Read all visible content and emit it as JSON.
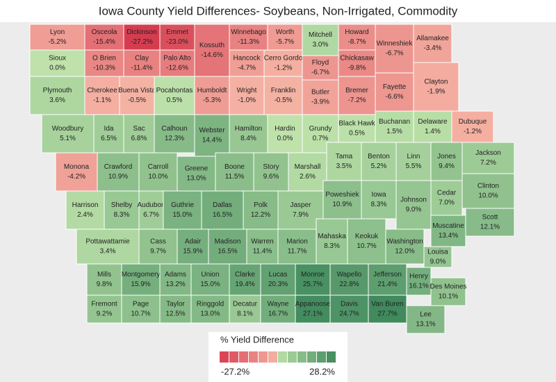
{
  "title": "Iowa County Yield Differences- Soybeans, Non-Irrigated, Commodity",
  "counties": [
    {
      "name": "Lyon",
      "value": -5.2,
      "value_label": "-5.2%"
    },
    {
      "name": "Osceola",
      "value": -15.4,
      "value_label": "-15.4%"
    },
    {
      "name": "Dickinson",
      "value": -27.2,
      "value_label": "-27.2%"
    },
    {
      "name": "Emmet",
      "value": -23.0,
      "value_label": "-23.0%"
    },
    {
      "name": "Kossuth",
      "value": -14.6,
      "value_label": "-14.6%"
    },
    {
      "name": "Winnebago",
      "value": -11.3,
      "value_label": "-11.3%"
    },
    {
      "name": "Worth",
      "value": -5.7,
      "value_label": "-5.7%"
    },
    {
      "name": "Mitchell",
      "value": 3.0,
      "value_label": "3.0%"
    },
    {
      "name": "Howard",
      "value": -8.7,
      "value_label": "-8.7%"
    },
    {
      "name": "Winneshiek",
      "value": -6.7,
      "value_label": "-6.7%"
    },
    {
      "name": "Allamakee",
      "value": -3.4,
      "value_label": "-3.4%"
    },
    {
      "name": "Sioux",
      "value": 0.0,
      "value_label": "0.0%"
    },
    {
      "name": "O Brien",
      "value": -10.3,
      "value_label": "-10.3%"
    },
    {
      "name": "Clay",
      "value": -11.4,
      "value_label": "-11.4%"
    },
    {
      "name": "Palo Alto",
      "value": -12.6,
      "value_label": "-12.6%"
    },
    {
      "name": "Hancock",
      "value": -4.7,
      "value_label": "-4.7%"
    },
    {
      "name": "Cerro Gordo",
      "value": -1.2,
      "value_label": "-1.2%"
    },
    {
      "name": "Floyd",
      "value": -6.7,
      "value_label": "-6.7%"
    },
    {
      "name": "Chickasaw",
      "value": -9.8,
      "value_label": "-9.8%"
    },
    {
      "name": "Fayette",
      "value": -6.6,
      "value_label": "-6.6%"
    },
    {
      "name": "Clayton",
      "value": -1.9,
      "value_label": "-1.9%"
    },
    {
      "name": "Plymouth",
      "value": 3.6,
      "value_label": "3.6%"
    },
    {
      "name": "Cherokee",
      "value": -1.1,
      "value_label": "-1.1%"
    },
    {
      "name": "Buena Vista",
      "value": -0.5,
      "value_label": "-0.5%"
    },
    {
      "name": "Pocahontas",
      "value": 0.5,
      "value_label": "0.5%"
    },
    {
      "name": "Humboldt",
      "value": -5.3,
      "value_label": "-5.3%"
    },
    {
      "name": "Wright",
      "value": -1.0,
      "value_label": "-1.0%"
    },
    {
      "name": "Franklin",
      "value": -0.5,
      "value_label": "-0.5%"
    },
    {
      "name": "Butler",
      "value": -3.9,
      "value_label": "-3.9%"
    },
    {
      "name": "Bremer",
      "value": -7.2,
      "value_label": "-7.2%"
    },
    {
      "name": "Woodbury",
      "value": 5.1,
      "value_label": "5.1%"
    },
    {
      "name": "Ida",
      "value": 6.5,
      "value_label": "6.5%"
    },
    {
      "name": "Sac",
      "value": 6.8,
      "value_label": "6.8%"
    },
    {
      "name": "Calhoun",
      "value": 12.3,
      "value_label": "12.3%"
    },
    {
      "name": "Webster",
      "value": 14.4,
      "value_label": "14.4%"
    },
    {
      "name": "Hamilton",
      "value": 8.4,
      "value_label": "8.4%"
    },
    {
      "name": "Hardin",
      "value": 0.0,
      "value_label": "0.0%"
    },
    {
      "name": "Grundy",
      "value": 0.7,
      "value_label": "0.7%"
    },
    {
      "name": "Black Hawk",
      "value": 0.5,
      "value_label": "0.5%"
    },
    {
      "name": "Buchanan",
      "value": 1.5,
      "value_label": "1.5%"
    },
    {
      "name": "Delaware",
      "value": 1.4,
      "value_label": "1.4%"
    },
    {
      "name": "Dubuque",
      "value": -1.2,
      "value_label": "-1.2%"
    },
    {
      "name": "Monona",
      "value": -4.2,
      "value_label": "-4.2%"
    },
    {
      "name": "Crawford",
      "value": 10.9,
      "value_label": "10.9%"
    },
    {
      "name": "Carroll",
      "value": 10.0,
      "value_label": "10.0%"
    },
    {
      "name": "Greene",
      "value": 13.0,
      "value_label": "13.0%"
    },
    {
      "name": "Boone",
      "value": 11.5,
      "value_label": "11.5%"
    },
    {
      "name": "Story",
      "value": 9.6,
      "value_label": "9.6%"
    },
    {
      "name": "Marshall",
      "value": 2.6,
      "value_label": "2.6%"
    },
    {
      "name": "Tama",
      "value": 3.5,
      "value_label": "3.5%"
    },
    {
      "name": "Benton",
      "value": 5.2,
      "value_label": "5.2%"
    },
    {
      "name": "Linn",
      "value": 5.5,
      "value_label": "5.5%"
    },
    {
      "name": "Jones",
      "value": 9.4,
      "value_label": "9.4%"
    },
    {
      "name": "Jackson",
      "value": 7.2,
      "value_label": "7.2%"
    },
    {
      "name": "Harrison",
      "value": 2.4,
      "value_label": "2.4%"
    },
    {
      "name": "Shelby",
      "value": 8.3,
      "value_label": "8.3%"
    },
    {
      "name": "Audubon",
      "value": 6.7,
      "value_label": "6.7%"
    },
    {
      "name": "Guthrie",
      "value": 15.0,
      "value_label": "15.0%"
    },
    {
      "name": "Dallas",
      "value": 16.5,
      "value_label": "16.5%"
    },
    {
      "name": "Polk",
      "value": 12.2,
      "value_label": "12.2%"
    },
    {
      "name": "Jasper",
      "value": 7.9,
      "value_label": "7.9%"
    },
    {
      "name": "Poweshiek",
      "value": 10.9,
      "value_label": "10.9%"
    },
    {
      "name": "Iowa",
      "value": 8.3,
      "value_label": "8.3%"
    },
    {
      "name": "Johnson",
      "value": 9.0,
      "value_label": "9.0%"
    },
    {
      "name": "Cedar",
      "value": 7.0,
      "value_label": "7.0%"
    },
    {
      "name": "Clinton",
      "value": 10.0,
      "value_label": "10.0%"
    },
    {
      "name": "Scott",
      "value": 12.1,
      "value_label": "12.1%"
    },
    {
      "name": "Muscatine",
      "value": 13.4,
      "value_label": "13.4%"
    },
    {
      "name": "Pottawattamie",
      "value": 3.4,
      "value_label": "3.4%"
    },
    {
      "name": "Cass",
      "value": 9.7,
      "value_label": "9.7%"
    },
    {
      "name": "Adair",
      "value": 15.9,
      "value_label": "15.9%"
    },
    {
      "name": "Madison",
      "value": 16.5,
      "value_label": "16.5%"
    },
    {
      "name": "Warren",
      "value": 11.4,
      "value_label": "11.4%"
    },
    {
      "name": "Marion",
      "value": 11.7,
      "value_label": "11.7%"
    },
    {
      "name": "Mahaska",
      "value": 8.3,
      "value_label": "8.3%"
    },
    {
      "name": "Keokuk",
      "value": 10.7,
      "value_label": "10.7%"
    },
    {
      "name": "Washington",
      "value": 12.0,
      "value_label": "12.0%"
    },
    {
      "name": "Louisa",
      "value": 9.0,
      "value_label": "9.0%"
    },
    {
      "name": "Mills",
      "value": 9.8,
      "value_label": "9.8%"
    },
    {
      "name": "Montgomery",
      "value": 15.9,
      "value_label": "15.9%"
    },
    {
      "name": "Adams",
      "value": 13.2,
      "value_label": "13.2%"
    },
    {
      "name": "Union",
      "value": 15.0,
      "value_label": "15.0%"
    },
    {
      "name": "Clarke",
      "value": 19.4,
      "value_label": "19.4%"
    },
    {
      "name": "Lucas",
      "value": 20.3,
      "value_label": "20.3%"
    },
    {
      "name": "Monroe",
      "value": 25.7,
      "value_label": "25.7%"
    },
    {
      "name": "Wapello",
      "value": 22.8,
      "value_label": "22.8%"
    },
    {
      "name": "Jefferson",
      "value": 21.4,
      "value_label": "21.4%"
    },
    {
      "name": "Henry",
      "value": 16.1,
      "value_label": "16.1%"
    },
    {
      "name": "Des Moines",
      "value": 10.1,
      "value_label": "10.1%"
    },
    {
      "name": "Fremont",
      "value": 9.2,
      "value_label": "9.2%"
    },
    {
      "name": "Page",
      "value": 10.7,
      "value_label": "10.7%"
    },
    {
      "name": "Taylor",
      "value": 12.5,
      "value_label": "12.5%"
    },
    {
      "name": "Ringgold",
      "value": 13.0,
      "value_label": "13.0%"
    },
    {
      "name": "Decatur",
      "value": 8.1,
      "value_label": "8.1%"
    },
    {
      "name": "Wayne",
      "value": 16.7,
      "value_label": "16.7%"
    },
    {
      "name": "Appanoose",
      "value": 27.1,
      "value_label": "27.1%"
    },
    {
      "name": "Davis",
      "value": 24.7,
      "value_label": "24.7%"
    },
    {
      "name": "Van Buren",
      "value": 27.7,
      "value_label": "27.7%"
    },
    {
      "name": "Lee",
      "value": 13.1,
      "value_label": "13.1%"
    }
  ],
  "legend": {
    "title": "% Yield Difference",
    "min": -27.2,
    "min_label": "-27.2%",
    "max": 28.2,
    "max_label": "28.2%"
  }
}
